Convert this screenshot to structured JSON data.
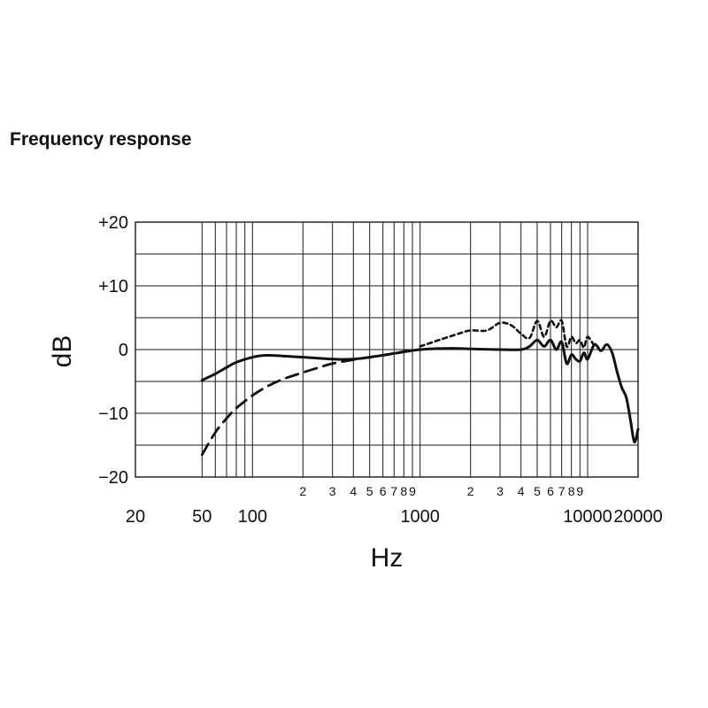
{
  "title": "Frequency response",
  "chart_data": {
    "type": "line",
    "xlabel": "Hz",
    "ylabel": "dB",
    "x_scale": "log",
    "xlim": [
      20,
      20000
    ],
    "ylim": [
      -20,
      20
    ],
    "grid": true,
    "y_ticks": [
      {
        "value": 20,
        "label": "+20"
      },
      {
        "value": 10,
        "label": "+10"
      },
      {
        "value": 0,
        "label": "0"
      },
      {
        "value": -10,
        "label": "−10"
      },
      {
        "value": -20,
        "label": "−20"
      }
    ],
    "x_ticks_major": [
      {
        "value": 20,
        "label": "20"
      },
      {
        "value": 50,
        "label": "50"
      },
      {
        "value": 100,
        "label": "100"
      },
      {
        "value": 1000,
        "label": "1000"
      },
      {
        "value": 10000,
        "label": "10000"
      },
      {
        "value": 20000,
        "label": "20000"
      }
    ],
    "x_ticks_minor": [
      {
        "value": 200,
        "label": "2"
      },
      {
        "value": 300,
        "label": "3"
      },
      {
        "value": 400,
        "label": "4"
      },
      {
        "value": 500,
        "label": "5"
      },
      {
        "value": 600,
        "label": "6"
      },
      {
        "value": 700,
        "label": "7"
      },
      {
        "value": 800,
        "label": "8"
      },
      {
        "value": 900,
        "label": "9"
      },
      {
        "value": 2000,
        "label": "2"
      },
      {
        "value": 3000,
        "label": "3"
      },
      {
        "value": 4000,
        "label": "4"
      },
      {
        "value": 5000,
        "label": "5"
      },
      {
        "value": 6000,
        "label": "6"
      },
      {
        "value": 7000,
        "label": "7"
      },
      {
        "value": 8000,
        "label": "8"
      },
      {
        "value": 9000,
        "label": "9"
      }
    ],
    "series": [
      {
        "style": "solid",
        "x": [
          50,
          60,
          70,
          80,
          100,
          120,
          150,
          200,
          300,
          400,
          500,
          700,
          1000,
          1500,
          2000,
          3000,
          4000,
          4500,
          5000,
          5500,
          6000,
          6500,
          7000,
          7500,
          8000,
          8500,
          9000,
          9500,
          10000,
          11000,
          12000,
          13000,
          14000,
          15000,
          16000,
          17000,
          18000,
          19000,
          20000
        ],
        "y": [
          -4.8,
          -3.8,
          -2.8,
          -2.0,
          -1.2,
          -0.9,
          -1.0,
          -1.2,
          -1.5,
          -1.5,
          -1.2,
          -0.6,
          0.0,
          0.2,
          0.1,
          0.0,
          0.0,
          0.5,
          1.5,
          0.5,
          1.5,
          0.0,
          1.2,
          -2.2,
          -0.8,
          -1.5,
          -1.8,
          -0.5,
          -1.5,
          0.8,
          -0.2,
          0.8,
          -0.5,
          -3.5,
          -6.0,
          -7.5,
          -11.0,
          -14.5,
          -12.5
        ]
      },
      {
        "style": "dashed",
        "x": [
          50,
          60,
          70,
          80,
          100,
          120,
          150,
          200,
          250,
          300,
          400,
          500,
          600,
          700,
          800,
          900,
          1000
        ],
        "y": [
          -16.5,
          -13.0,
          -10.8,
          -9.2,
          -7.2,
          -5.9,
          -4.7,
          -3.6,
          -2.8,
          -2.2,
          -1.6,
          -1.2,
          -0.9,
          -0.6,
          -0.3,
          -0.1,
          0.0
        ]
      },
      {
        "style": "dotted",
        "x": [
          1000,
          1300,
          1700,
          2000,
          2500,
          3000,
          3500,
          4000,
          4500,
          5000,
          5500,
          6000,
          6500,
          7000,
          7500,
          8000,
          8500,
          9000,
          9500,
          10000,
          11000
        ],
        "y": [
          0.5,
          1.5,
          2.5,
          3.0,
          3.0,
          4.2,
          3.8,
          2.5,
          1.8,
          4.5,
          2.0,
          4.5,
          3.5,
          4.5,
          0.5,
          2.0,
          1.0,
          1.5,
          0.3,
          2.0,
          0.5
        ]
      }
    ]
  }
}
